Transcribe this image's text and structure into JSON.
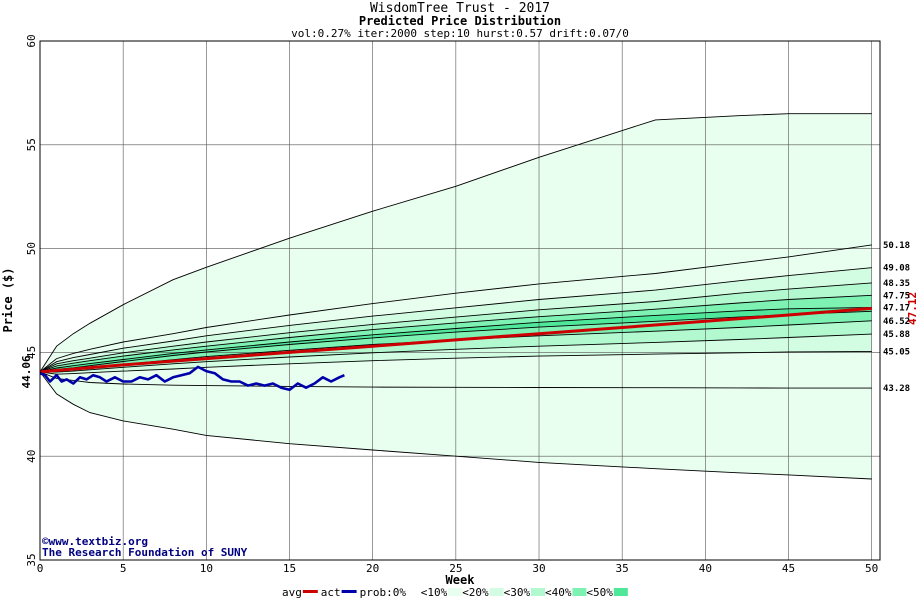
{
  "chart_data": {
    "type": "area",
    "title": "WisdomTree Trust - 2017",
    "subtitle": "Predicted Price Distribution",
    "params": "vol:0.27% iter:2000 step:10 hurst:0.57 drift:0.07/0",
    "xlabel": "Week",
    "ylabel": "Price ($)",
    "xlim": [
      0,
      50.5
    ],
    "ylim": [
      35,
      60
    ],
    "xticks": [
      0,
      5,
      10,
      15,
      20,
      25,
      30,
      35,
      40,
      45,
      50
    ],
    "yticks": [
      35,
      40,
      45,
      50,
      55,
      60
    ],
    "grid": true,
    "start_value": 44.06,
    "start_label": "44.06",
    "end_value": 47.12,
    "end_label": "47.12",
    "x": [
      0,
      1,
      2,
      3,
      5,
      8,
      10,
      15,
      20,
      25,
      30,
      37,
      42,
      45,
      50
    ],
    "envelope": {
      "upper": [
        44.06,
        45.3,
        45.9,
        46.4,
        47.3,
        48.5,
        49.1,
        50.5,
        51.8,
        53.0,
        54.4,
        56.2,
        56.4,
        56.5,
        56.5
      ],
      "lower": [
        44.06,
        43.0,
        42.5,
        42.1,
        41.7,
        41.3,
        41.0,
        40.6,
        40.3,
        40.0,
        39.7,
        39.4,
        39.2,
        39.1,
        38.9
      ]
    },
    "bands": [
      {
        "name": "<10%",
        "color": "#e8fff0",
        "upper": [
          44.06,
          44.7,
          44.95,
          45.15,
          45.5,
          45.9,
          46.2,
          46.8,
          47.35,
          47.85,
          48.3,
          48.8,
          49.3,
          49.6,
          50.18
        ],
        "lower": [
          44.06,
          43.75,
          43.65,
          43.55,
          43.48,
          43.42,
          43.4,
          43.36,
          43.33,
          43.32,
          43.31,
          43.3,
          43.29,
          43.28,
          43.28
        ]
      },
      {
        "name": "<20%",
        "color": "#d2fde2",
        "upper": [
          44.06,
          44.55,
          44.75,
          44.9,
          45.2,
          45.55,
          45.8,
          46.3,
          46.75,
          47.15,
          47.55,
          48.0,
          48.45,
          48.7,
          49.08
        ],
        "lower": [
          44.06,
          43.95,
          43.98,
          44.02,
          44.1,
          44.2,
          44.28,
          44.45,
          44.6,
          44.72,
          44.82,
          44.92,
          44.98,
          45.02,
          45.05
        ]
      },
      {
        "name": "<30%",
        "color": "#b2f9d0",
        "upper": [
          44.06,
          44.45,
          44.6,
          44.72,
          44.98,
          45.3,
          45.5,
          45.95,
          46.35,
          46.7,
          47.05,
          47.45,
          47.85,
          48.05,
          48.35
        ],
        "lower": [
          44.06,
          44.05,
          44.1,
          44.16,
          44.28,
          44.45,
          44.55,
          44.78,
          44.98,
          45.15,
          45.3,
          45.48,
          45.62,
          45.72,
          45.88
        ]
      },
      {
        "name": "<40%",
        "color": "#7df2b2",
        "upper": [
          44.06,
          44.35,
          44.48,
          44.6,
          44.82,
          45.12,
          45.3,
          45.72,
          46.1,
          46.42,
          46.72,
          47.08,
          47.38,
          47.55,
          47.75
        ],
        "lower": [
          44.06,
          44.12,
          44.18,
          44.26,
          44.42,
          44.65,
          44.8,
          45.1,
          45.38,
          45.6,
          45.8,
          46.02,
          46.2,
          46.32,
          46.52
        ]
      },
      {
        "name": "<50%",
        "color": "#4fe89a",
        "upper": [
          44.06,
          44.25,
          44.36,
          44.46,
          44.66,
          44.95,
          45.12,
          45.5,
          45.85,
          46.15,
          46.45,
          46.78,
          47.0,
          47.1,
          47.17
        ],
        "lower": [
          44.06,
          44.18,
          44.26,
          44.36,
          44.56,
          44.85,
          45.02,
          45.38,
          45.7,
          45.98,
          46.22,
          46.5,
          46.7,
          46.82,
          46.98
        ]
      }
    ],
    "band_labels": [
      "50.18",
      "49.08",
      "48.35",
      "47.75",
      "47.17",
      "46.52",
      "45.88",
      "45.05",
      "43.28"
    ],
    "band_label_values": [
      50.18,
      49.08,
      48.35,
      47.75,
      47.17,
      46.52,
      45.88,
      45.05,
      43.28
    ],
    "series": [
      {
        "name": "avg",
        "color": "#cc0000",
        "x": [
          0,
          5,
          10,
          15,
          20,
          25,
          30,
          35,
          40,
          45,
          50
        ],
        "values": [
          44.06,
          44.4,
          44.7,
          45.0,
          45.3,
          45.6,
          45.9,
          46.2,
          46.5,
          46.8,
          47.12
        ]
      },
      {
        "name": "act",
        "color": "#0000aa",
        "x": [
          0,
          0.3,
          0.6,
          1.0,
          1.3,
          1.6,
          2.0,
          2.4,
          2.8,
          3.2,
          3.6,
          4.0,
          4.5,
          5.0,
          5.5,
          6.0,
          6.5,
          7.0,
          7.5,
          8.0,
          8.5,
          9.0,
          9.5,
          10.0,
          10.5,
          11.0,
          11.5,
          12.0,
          12.5,
          13.0,
          13.5,
          14.0,
          14.5,
          15.0,
          15.5,
          16.0,
          16.5,
          17.0,
          17.5,
          18.0,
          18.3
        ],
        "values": [
          44.0,
          43.9,
          43.6,
          43.9,
          43.6,
          43.7,
          43.5,
          43.8,
          43.7,
          43.9,
          43.8,
          43.6,
          43.8,
          43.6,
          43.6,
          43.8,
          43.7,
          43.9,
          43.6,
          43.8,
          43.9,
          44.0,
          44.3,
          44.1,
          44.0,
          43.7,
          43.6,
          43.6,
          43.4,
          43.5,
          43.4,
          43.5,
          43.3,
          43.2,
          43.5,
          43.3,
          43.5,
          43.8,
          43.6,
          43.8,
          43.9
        ]
      }
    ],
    "legend": {
      "placement": "bottom",
      "items": [
        {
          "label": "avg",
          "color": "#cc0000",
          "kind": "line"
        },
        {
          "label": "act",
          "color": "#0000aa",
          "kind": "line"
        },
        {
          "label": "prob:0%",
          "color": "#ffffff",
          "kind": "swatch"
        },
        {
          "label": "<10%",
          "color": "#e8fff0",
          "kind": "swatch"
        },
        {
          "label": "<20%",
          "color": "#d2fde2",
          "kind": "swatch"
        },
        {
          "label": "<30%",
          "color": "#b2f9d0",
          "kind": "swatch"
        },
        {
          "label": "<40%",
          "color": "#7df2b2",
          "kind": "swatch"
        },
        {
          "label": "<50%",
          "color": "#4fe89a",
          "kind": "swatch"
        }
      ]
    },
    "credit": {
      "line1": "©www.textbiz.org",
      "line2": "The Research Foundation of SUNY"
    }
  }
}
